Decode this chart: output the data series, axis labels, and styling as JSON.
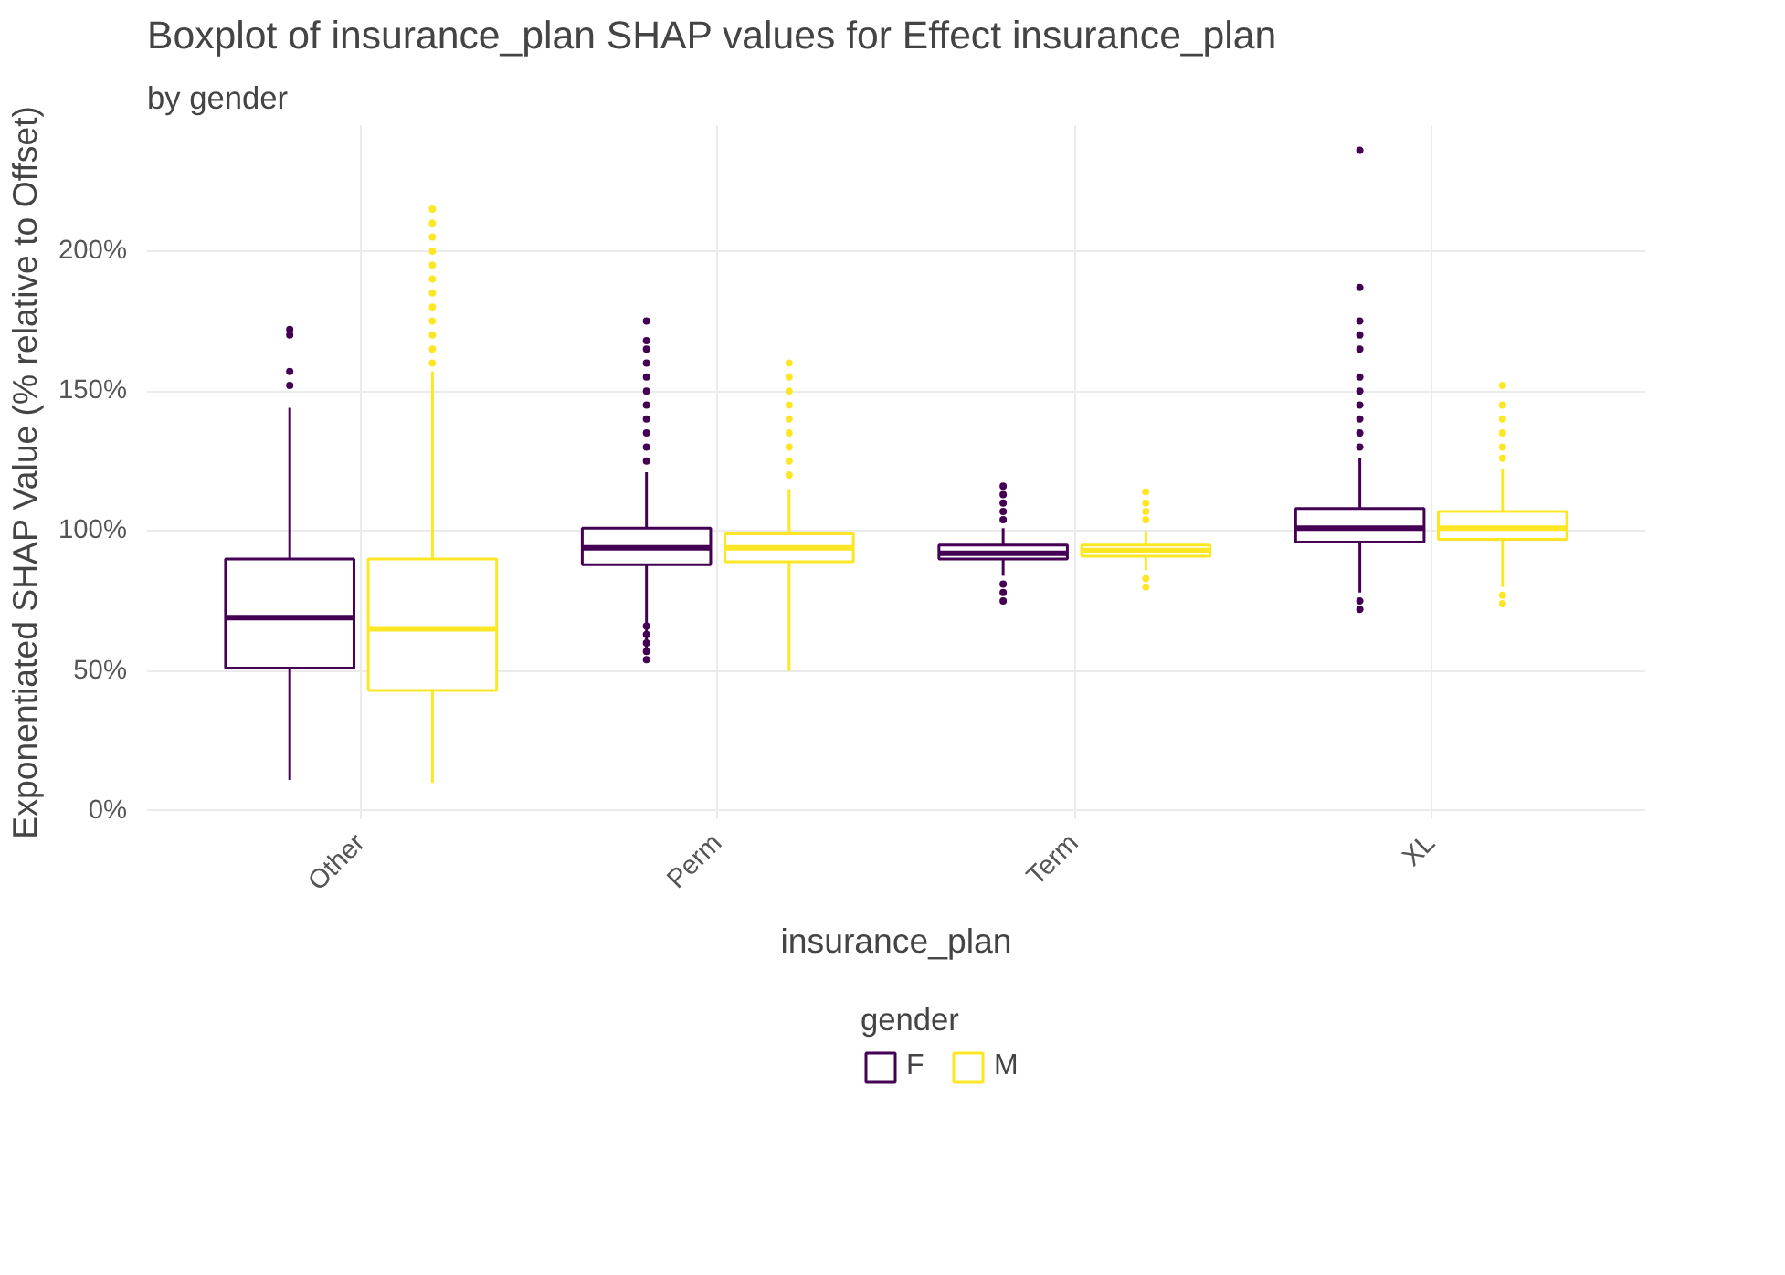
{
  "chart_data": {
    "type": "box",
    "title": "Boxplot of insurance_plan SHAP values for Effect insurance_plan",
    "subtitle": "by gender",
    "xlabel": "insurance_plan",
    "ylabel": "Exponentiated SHAP Value (% relative to Offset)",
    "legend_title": "gender",
    "categories": [
      "Other",
      "Perm",
      "Term",
      "XL"
    ],
    "ylim": [
      -3,
      245
    ],
    "yticks": [
      {
        "value": 0,
        "label": "0%"
      },
      {
        "value": 50,
        "label": "50%"
      },
      {
        "value": 100,
        "label": "100%"
      },
      {
        "value": 150,
        "label": "150%"
      },
      {
        "value": 200,
        "label": "200%"
      }
    ],
    "grid": true,
    "legend": "bottom",
    "series": [
      {
        "name": "F",
        "color": "#440154",
        "boxes": [
          {
            "low": 11,
            "q1": 51,
            "median": 69,
            "q3": 90,
            "high": 144,
            "outliers": [
              152,
              157,
              170,
              172
            ]
          },
          {
            "low": 58,
            "q1": 88,
            "median": 94,
            "q3": 101,
            "high": 121,
            "outliers": [
              54,
              57,
              60,
              63,
              66,
              125,
              130,
              135,
              140,
              145,
              150,
              155,
              160,
              165,
              168,
              175
            ]
          },
          {
            "low": 84,
            "q1": 90,
            "median": 92,
            "q3": 95,
            "high": 101,
            "outliers": [
              75,
              78,
              81,
              104,
              107,
              110,
              113,
              116
            ]
          },
          {
            "low": 78,
            "q1": 96,
            "median": 101,
            "q3": 108,
            "high": 126,
            "outliers": [
              72,
              75,
              130,
              135,
              140,
              145,
              150,
              155,
              165,
              170,
              175,
              187,
              236
            ]
          }
        ]
      },
      {
        "name": "M",
        "color": "#fde725",
        "boxes": [
          {
            "low": 10,
            "q1": 43,
            "median": 65,
            "q3": 90,
            "high": 157,
            "outliers": [
              160,
              165,
              170,
              175,
              180,
              185,
              190,
              195,
              200,
              205,
              210,
              215
            ]
          },
          {
            "low": 50,
            "q1": 89,
            "median": 94,
            "q3": 99,
            "high": 115,
            "outliers": [
              120,
              125,
              130,
              135,
              140,
              145,
              150,
              155,
              160
            ]
          },
          {
            "low": 86,
            "q1": 91,
            "median": 93,
            "q3": 95,
            "high": 100,
            "outliers": [
              80,
              83,
              104,
              107,
              110,
              114
            ]
          },
          {
            "low": 80,
            "q1": 97,
            "median": 101,
            "q3": 107,
            "high": 122,
            "outliers": [
              74,
              77,
              126,
              130,
              135,
              140,
              145,
              152
            ]
          }
        ]
      }
    ]
  }
}
